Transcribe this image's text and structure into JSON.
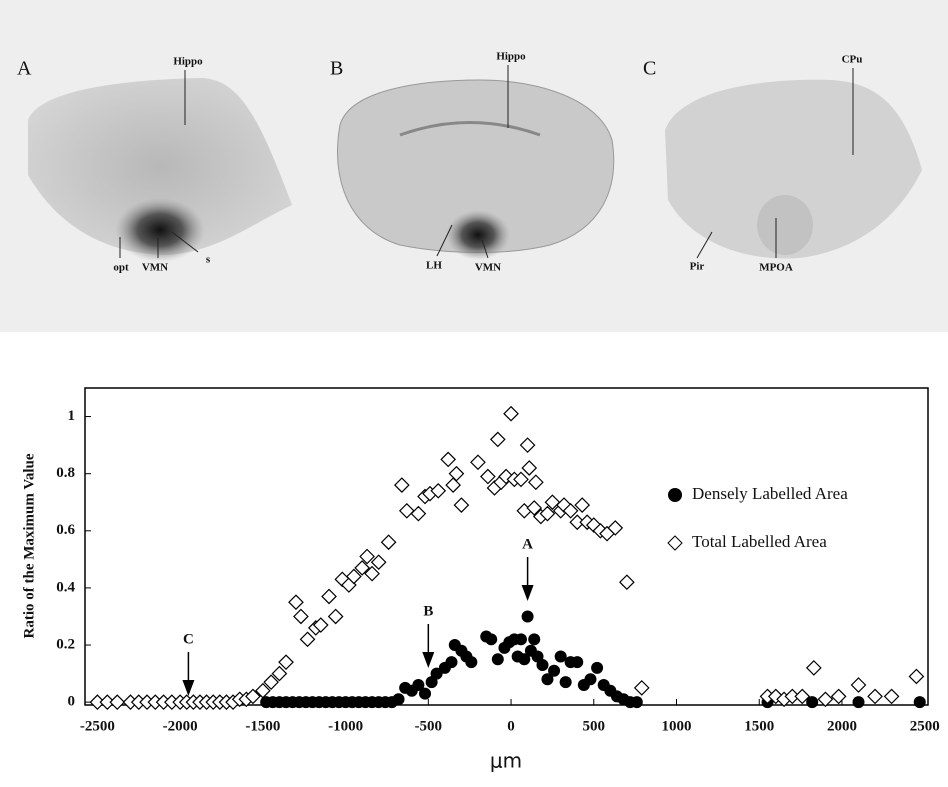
{
  "panels": [
    {
      "label": "A",
      "annotations": [
        "Hippo",
        "opt",
        "VMN",
        "s"
      ]
    },
    {
      "label": "B",
      "annotations": [
        "Hippo",
        "LH",
        "VMN"
      ]
    },
    {
      "label": "C",
      "annotations": [
        "CPu",
        "Pir",
        "MPOA"
      ]
    }
  ],
  "chart_data": {
    "type": "scatter",
    "ylabel": "Ratio of the Maximum Value",
    "xlabel": "μm",
    "xlim": [
      -2575,
      2520
    ],
    "ylim": [
      -0.01,
      1.1
    ],
    "xticks": [
      -2500,
      -2000,
      -1500,
      -1000,
      -500,
      0,
      500,
      1000,
      1500,
      2000,
      2500
    ],
    "yticks": [
      0,
      0.2,
      0.4,
      0.6,
      0.8,
      1
    ],
    "legend": "right",
    "annotations": [
      {
        "text": "A",
        "x": 100
      },
      {
        "text": "B",
        "x": -500
      },
      {
        "text": "C",
        "x": -1950
      }
    ],
    "series": [
      {
        "name": "Densely Labelled Area",
        "marker": "circle",
        "color": "#000000",
        "x": [
          -1480,
          -1440,
          -1400,
          -1360,
          -1320,
          -1280,
          -1240,
          -1200,
          -1160,
          -1120,
          -1080,
          -1040,
          -1000,
          -960,
          -920,
          -880,
          -840,
          -800,
          -760,
          -720,
          -680,
          -640,
          -600,
          -560,
          -520,
          -480,
          -450,
          -400,
          -360,
          -340,
          -300,
          -270,
          -240,
          -150,
          -120,
          -80,
          -40,
          -10,
          20,
          40,
          60,
          80,
          100,
          120,
          140,
          160,
          190,
          220,
          260,
          300,
          330,
          360,
          400,
          440,
          480,
          520,
          560,
          600,
          640,
          680,
          720,
          760,
          1550,
          1820,
          2100,
          2470
        ],
        "values": [
          0,
          0,
          0,
          0,
          0,
          0,
          0,
          0,
          0,
          0,
          0,
          0,
          0,
          0,
          0,
          0,
          0,
          0,
          0,
          0,
          0.01,
          0.05,
          0.04,
          0.06,
          0.03,
          0.07,
          0.1,
          0.12,
          0.14,
          0.2,
          0.18,
          0.16,
          0.14,
          0.23,
          0.22,
          0.15,
          0.19,
          0.21,
          0.22,
          0.16,
          0.22,
          0.15,
          0.3,
          0.18,
          0.22,
          0.16,
          0.13,
          0.08,
          0.11,
          0.16,
          0.07,
          0.14,
          0.14,
          0.06,
          0.08,
          0.12,
          0.06,
          0.04,
          0.02,
          0.01,
          0,
          0,
          0,
          0,
          0,
          0
        ]
      },
      {
        "name": "Total Labelled Area",
        "marker": "diamond",
        "color": "#000000",
        "x": [
          -2500,
          -2440,
          -2380,
          -2300,
          -2250,
          -2200,
          -2150,
          -2100,
          -2050,
          -2000,
          -1960,
          -1920,
          -1880,
          -1840,
          -1800,
          -1760,
          -1720,
          -1680,
          -1640,
          -1600,
          -1560,
          -1500,
          -1450,
          -1400,
          -1360,
          -1300,
          -1270,
          -1230,
          -1180,
          -1150,
          -1100,
          -1060,
          -1020,
          -980,
          -950,
          -900,
          -870,
          -840,
          -800,
          -740,
          -660,
          -630,
          -560,
          -520,
          -490,
          -440,
          -380,
          -350,
          -330,
          -300,
          -200,
          -140,
          -100,
          -80,
          -60,
          -30,
          0,
          20,
          60,
          80,
          100,
          110,
          140,
          150,
          180,
          220,
          250,
          300,
          320,
          360,
          400,
          430,
          460,
          500,
          540,
          580,
          630,
          700,
          790,
          1550,
          1600,
          1650,
          1700,
          1760,
          1830,
          1900,
          1980,
          2100,
          2200,
          2300,
          2450
        ],
        "values": [
          0,
          0,
          0,
          0,
          0,
          0,
          0,
          0,
          0,
          0,
          0,
          0,
          0,
          0,
          0,
          0,
          0,
          0,
          0.01,
          0.01,
          0.02,
          0.04,
          0.07,
          0.1,
          0.14,
          0.35,
          0.3,
          0.22,
          0.26,
          0.27,
          0.37,
          0.3,
          0.43,
          0.41,
          0.44,
          0.47,
          0.51,
          0.45,
          0.49,
          0.56,
          0.76,
          0.67,
          0.66,
          0.72,
          0.73,
          0.74,
          0.85,
          0.76,
          0.8,
          0.69,
          0.84,
          0.79,
          0.75,
          0.92,
          0.77,
          0.79,
          1.01,
          0.78,
          0.78,
          0.67,
          0.9,
          0.82,
          0.68,
          0.77,
          0.65,
          0.66,
          0.7,
          0.67,
          0.69,
          0.67,
          0.63,
          0.69,
          0.63,
          0.62,
          0.6,
          0.59,
          0.61,
          0.42,
          0.05,
          0.02,
          0.02,
          0.01,
          0.02,
          0.02,
          0.12,
          0.01,
          0.02,
          0.06,
          0.02,
          0.02,
          0.09
        ]
      }
    ]
  }
}
